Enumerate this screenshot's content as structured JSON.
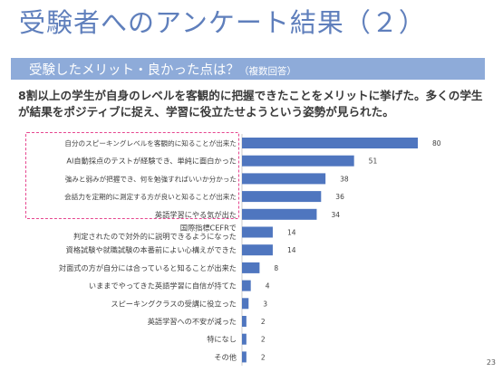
{
  "slide": {
    "title": "受験者へのアンケート結果（２）",
    "section_title": "受験したメリット・良かった点は？",
    "section_subtitle": "（複数回答）",
    "summary": "8割以上の学生が自身のレベルを客観的に把握できたことをメリットに挙げた。多くの学生が結果をポジティブに捉え、学習に役立たせようという姿勢が見られた。",
    "page_number": "23"
  },
  "colors": {
    "title": "#5f7fbc",
    "section_bar": "#8eabd9",
    "bar": "#4f76bf",
    "highlight": "#e6468f"
  },
  "chart_data": {
    "type": "bar",
    "orientation": "horizontal",
    "categories": [
      "自分のスピーキングレベルを客観的に知ることが出来た",
      "AI自動採点のテストが経験でき、単純に面白かった",
      "強みと弱みが把握でき、何を勉強すればいいか分かった",
      "会話力を定期的に測定する方が良いと知ることが出来た",
      "英語学習にやる気が出た",
      "国際指標CEFRで判定されたので対外的に説明できるようになった",
      "資格試験や就職試験の本番前によい心構えができた",
      "対面式の方が自分には合っていると知ることが出来た",
      "いままでやってきた英語学習に自信が持てた",
      "スピーキングクラスの受講に役立った",
      "英語学習への不安が減った",
      "特になし",
      "その他"
    ],
    "values": [
      80,
      51,
      38,
      36,
      34,
      14,
      14,
      8,
      4,
      3,
      2,
      2,
      2
    ],
    "xlim": [
      0,
      80
    ],
    "grid": false,
    "legend": false,
    "highlighted_count": 5
  }
}
